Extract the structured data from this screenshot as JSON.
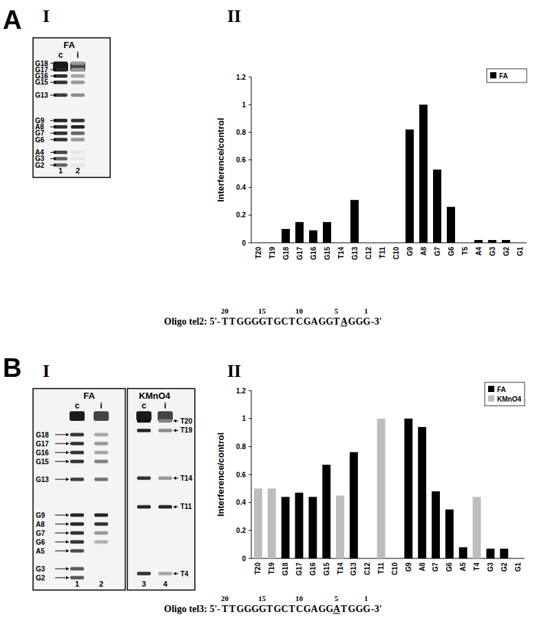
{
  "chart_data": [
    {
      "type": "gel",
      "title": "FA",
      "label_side": "left",
      "bands": [
        {
          "label": "G18",
          "position": 18
        },
        {
          "label": "G17",
          "position": 17
        },
        {
          "label": "G16",
          "position": 16
        },
        {
          "label": "G15",
          "position": 15
        },
        {
          "label": "G13",
          "position": 13
        },
        {
          "label": "G9",
          "position": 9
        },
        {
          "label": "A8",
          "position": 8
        },
        {
          "label": "G7",
          "position": 7
        },
        {
          "label": "G6",
          "position": 6
        },
        {
          "label": "A4",
          "position": 4
        },
        {
          "label": "G3",
          "position": 3
        },
        {
          "label": "G2",
          "position": 2
        }
      ],
      "lanes": [
        {
          "label": "c",
          "number": 1,
          "intensity": [
            0.9,
            0.85,
            0.8,
            0.8,
            0.75,
            0.85,
            0.8,
            0.8,
            0.8,
            0.7,
            0.6,
            0.6
          ]
        },
        {
          "label": "i",
          "number": 2,
          "intensity": [
            0.4,
            0.4,
            0.35,
            0.4,
            0.45,
            0.8,
            0.85,
            0.6,
            0.4,
            0.1,
            0.1,
            0.1
          ]
        }
      ]
    },
    {
      "type": "bar",
      "y_label": "Interference/control",
      "categories": [
        "T20",
        "T19",
        "G18",
        "G17",
        "G16",
        "G15",
        "T14",
        "G13",
        "C12",
        "T11",
        "C10",
        "G9",
        "A8",
        "G7",
        "G6",
        "T5",
        "A4",
        "G3",
        "G2",
        "G1"
      ],
      "series": [
        {
          "name": "FA",
          "color": "#000000",
          "values": [
            0,
            0,
            0.1,
            0.15,
            0.09,
            0.15,
            0,
            0.31,
            0,
            0,
            0,
            0.82,
            1,
            0.53,
            0.26,
            0,
            0.02,
            0.02,
            0.02,
            0
          ]
        }
      ],
      "ylim": [
        0,
        1.2
      ],
      "yticks": [
        0,
        0.2,
        0.4,
        0.6,
        0.8,
        1,
        1.2
      ],
      "grid": false,
      "legend": "upper right"
    },
    {
      "type": "gel",
      "title": "FA",
      "label_side": "left",
      "bands": [
        {
          "label": "G18",
          "position": 18
        },
        {
          "label": "G17",
          "position": 17
        },
        {
          "label": "G16",
          "position": 16
        },
        {
          "label": "G15",
          "position": 15
        },
        {
          "label": "G13",
          "position": 13
        },
        {
          "label": "G9",
          "position": 9
        },
        {
          "label": "A8",
          "position": 8
        },
        {
          "label": "G7",
          "position": 7
        },
        {
          "label": "G6",
          "position": 6
        },
        {
          "label": "A5",
          "position": 5
        },
        {
          "label": "G3",
          "position": 3
        },
        {
          "label": "G2",
          "position": 2
        }
      ],
      "lanes": [
        {
          "label": "c",
          "number": 1,
          "intensity": [
            0.8,
            0.8,
            0.8,
            0.8,
            0.75,
            0.85,
            0.85,
            0.8,
            0.8,
            0.7,
            0.65,
            0.65
          ]
        },
        {
          "label": "i",
          "number": 2,
          "intensity": [
            0.35,
            0.4,
            0.35,
            0.5,
            0.55,
            0.85,
            0.8,
            0.4,
            0.3,
            0.05,
            0.05,
            0.05
          ]
        }
      ]
    },
    {
      "type": "gel",
      "title": "KMnO4",
      "label_side": "right",
      "bands": [
        {
          "label": "T20",
          "position": 20
        },
        {
          "label": "T19",
          "position": 19
        },
        {
          "label": "T14",
          "position": 14
        },
        {
          "label": "T11",
          "position": 11
        },
        {
          "label": "T4",
          "position": 4
        }
      ],
      "lanes": [
        {
          "label": "c",
          "number": 3,
          "intensity": [
            0.95,
            0.85,
            0.8,
            0.85,
            0.8
          ]
        },
        {
          "label": "i",
          "number": 4,
          "intensity": [
            0.5,
            0.45,
            0.4,
            0.85,
            0.35
          ]
        }
      ]
    },
    {
      "type": "bar",
      "y_label": "Interference/control",
      "categories": [
        "T20",
        "T19",
        "G18",
        "G17",
        "G16",
        "G15",
        "T14",
        "G13",
        "C12",
        "T11",
        "C10",
        "G9",
        "A8",
        "G7",
        "G6",
        "A5",
        "T4",
        "G3",
        "G2",
        "G1"
      ],
      "series": [
        {
          "name": "FA",
          "color": "#000000",
          "values": [
            null,
            null,
            0.44,
            0.47,
            0.44,
            0.67,
            null,
            0.76,
            null,
            null,
            null,
            1,
            0.94,
            0.48,
            0.35,
            0.08,
            null,
            0.07,
            0.07,
            null
          ]
        },
        {
          "name": "KMnO4",
          "color": "#bdbdbd",
          "values": [
            0.5,
            0.5,
            null,
            null,
            null,
            null,
            0.45,
            null,
            null,
            1,
            null,
            null,
            null,
            null,
            null,
            null,
            0.44,
            null,
            null,
            null
          ]
        }
      ],
      "ylim": [
        0,
        1.2
      ],
      "yticks": [
        0,
        0.2,
        0.4,
        0.6,
        0.8,
        1,
        1.2
      ],
      "grid": false,
      "legend": "upper right"
    }
  ],
  "figure": {
    "panels": [
      {
        "letter": "A",
        "labels": [
          "I",
          "II"
        ],
        "oligo": {
          "prefix": "Oligo tel2: 5'-",
          "sequence": "TTGGGGTGCTCGAGGTAGGG",
          "suffix": "-3'",
          "position_marks": [
            20,
            15,
            10,
            5,
            1
          ],
          "underlined": 4
        }
      },
      {
        "letter": "B",
        "labels": [
          "I",
          "II"
        ],
        "oligo": {
          "prefix": "Oligo tel3: 5'-",
          "sequence": "TTGGGGTGCTCGAGGATGGG",
          "suffix": "-3'",
          "position_marks": [
            20,
            15,
            10,
            5,
            1
          ],
          "underlined": 5
        }
      }
    ]
  }
}
